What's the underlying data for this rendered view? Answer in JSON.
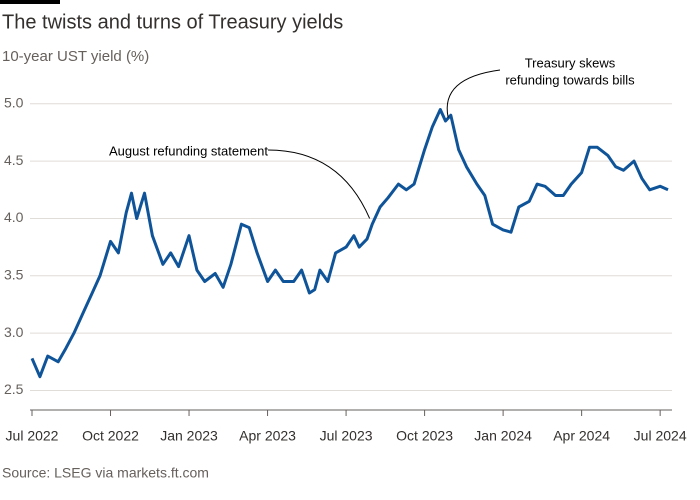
{
  "chart_data": {
    "type": "line",
    "title": "The twists and turns of Treasury yields",
    "subtitle": "10-year UST yield (%)",
    "source": "Source: LSEG via markets.ft.com",
    "x": [
      0,
      0.3,
      0.6,
      1.0,
      1.3,
      1.6,
      2.0,
      2.3,
      2.6,
      3.0,
      3.3,
      3.6,
      3.8,
      4.0,
      4.3,
      4.6,
      5.0,
      5.3,
      5.6,
      6.0,
      6.3,
      6.6,
      7.0,
      7.3,
      7.6,
      8.0,
      8.3,
      8.6,
      9.0,
      9.3,
      9.6,
      10.0,
      10.3,
      10.6,
      10.8,
      11.0,
      11.3,
      11.6,
      12.0,
      12.3,
      12.5,
      12.8,
      13.0,
      13.3,
      13.6,
      14.0,
      14.3,
      14.6,
      15.0,
      15.3,
      15.6,
      15.8,
      16.0,
      16.3,
      16.6,
      17.0,
      17.3,
      17.6,
      18.0,
      18.3,
      18.6,
      19.0,
      19.3,
      19.6,
      20.0,
      20.3,
      20.6,
      21.0,
      21.3,
      21.6,
      22.0,
      22.3,
      22.6,
      23.0,
      23.3,
      23.6,
      24.0,
      24.3
    ],
    "series": [
      {
        "name": "10-year UST yield",
        "color": "#0f5499",
        "values": [
          2.78,
          2.62,
          2.8,
          2.75,
          2.87,
          3.0,
          3.2,
          3.35,
          3.5,
          3.8,
          3.7,
          4.05,
          4.22,
          4.0,
          4.22,
          3.85,
          3.6,
          3.7,
          3.58,
          3.85,
          3.55,
          3.45,
          3.52,
          3.4,
          3.6,
          3.95,
          3.92,
          3.7,
          3.45,
          3.55,
          3.45,
          3.45,
          3.55,
          3.35,
          3.38,
          3.55,
          3.45,
          3.7,
          3.75,
          3.85,
          3.75,
          3.82,
          3.95,
          4.1,
          4.18,
          4.3,
          4.25,
          4.3,
          4.6,
          4.8,
          4.95,
          4.85,
          4.9,
          4.6,
          4.45,
          4.3,
          4.2,
          3.95,
          3.9,
          3.88,
          4.1,
          4.15,
          4.3,
          4.28,
          4.2,
          4.2,
          4.3,
          4.4,
          4.62,
          4.62,
          4.55,
          4.45,
          4.42,
          4.5,
          4.35,
          4.25,
          4.28,
          4.25
        ]
      }
    ],
    "xlim": [
      0,
      24.3
    ],
    "xticks": [
      {
        "value": 0,
        "label": "Jul 2022"
      },
      {
        "value": 3,
        "label": "Oct 2022"
      },
      {
        "value": 6,
        "label": "Jan 2023"
      },
      {
        "value": 9,
        "label": "Apr 2023"
      },
      {
        "value": 12,
        "label": "Jul 2023"
      },
      {
        "value": 15,
        "label": "Oct 2023"
      },
      {
        "value": 18,
        "label": "Jan 2024"
      },
      {
        "value": 21,
        "label": "Apr 2024"
      },
      {
        "value": 24,
        "label": "Jul 2024"
      }
    ],
    "ylim": [
      2.33,
      5.12
    ],
    "yticks": [
      {
        "value": 2.5,
        "label": "2.5"
      },
      {
        "value": 3,
        "label": "3.0"
      },
      {
        "value": 3.5,
        "label": "3.5"
      },
      {
        "value": 4,
        "label": "4.0"
      },
      {
        "value": 4.5,
        "label": "4.5"
      },
      {
        "value": 5,
        "label": "5.0"
      }
    ],
    "grid": true,
    "annotations": [
      {
        "lines": [
          "August refunding statement"
        ],
        "x": 12.9,
        "y": 4.0
      },
      {
        "lines": [
          "Treasury skews",
          "refunding towards bills"
        ],
        "x": 15.9,
        "y": 4.88
      }
    ]
  }
}
